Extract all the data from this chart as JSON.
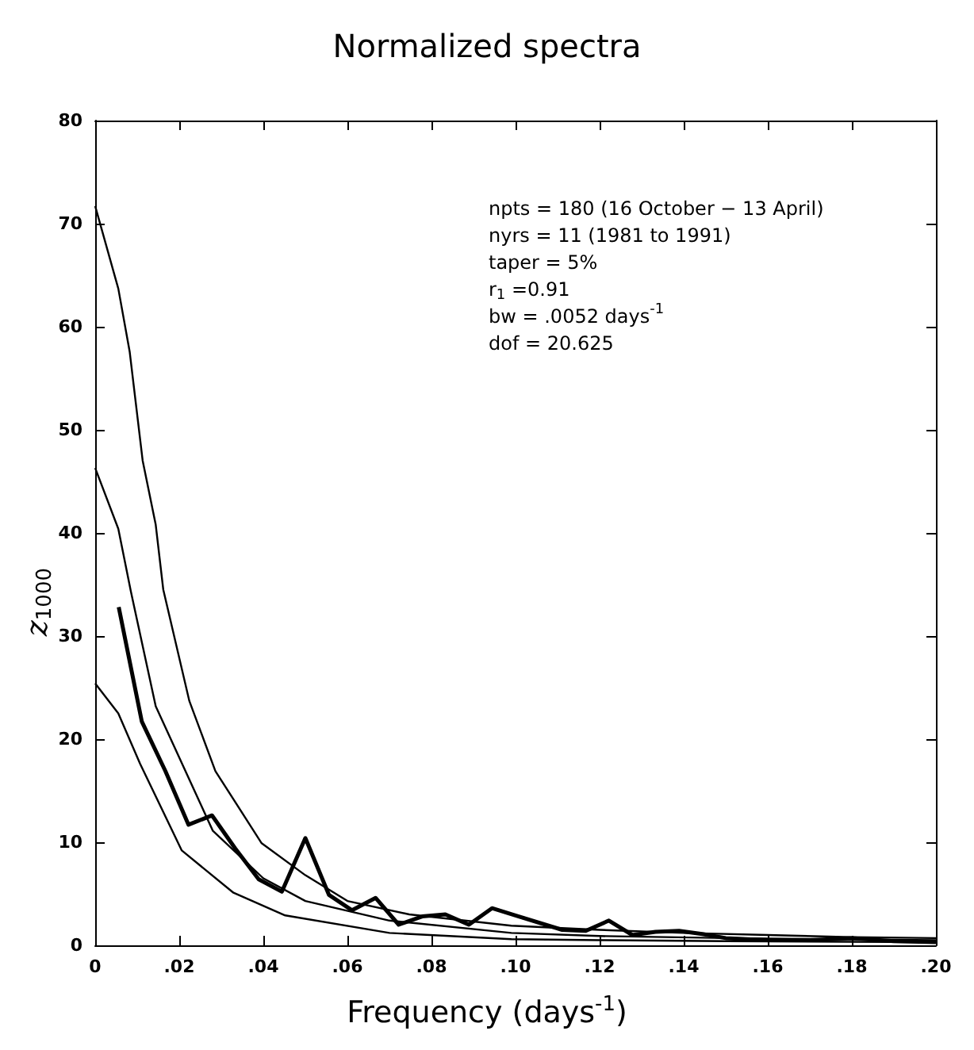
{
  "chart_data": {
    "type": "line",
    "title": "Normalized spectra",
    "xlabel": "Frequency (days$^{-1}$)",
    "ylabel": "z$_{1000}$",
    "annotations": [
      "npts = 180 (16 October − 13 April)",
      "nyrs = 11 (1981 to 1991)",
      "taper = 5%",
      "r$_{1}$ =0.91",
      "bw = .0052 days$^{-1}$",
      "dof = 20.625"
    ],
    "xlim": [
      0,
      0.2
    ],
    "xticks": [
      {
        "value": 0,
        "label": "0"
      },
      {
        "value": 0.02,
        "label": ".02"
      },
      {
        "value": 0.04,
        "label": ".04"
      },
      {
        "value": 0.06,
        "label": ".06"
      },
      {
        "value": 0.08,
        "label": ".08"
      },
      {
        "value": 0.1,
        "label": ".10"
      },
      {
        "value": 0.12,
        "label": ".12"
      },
      {
        "value": 0.14,
        "label": ".14"
      },
      {
        "value": 0.16,
        "label": ".16"
      },
      {
        "value": 0.18,
        "label": ".18"
      },
      {
        "value": 0.2,
        "label": ".20"
      }
    ],
    "ylim": [
      0,
      80
    ],
    "yticks": [
      0,
      10,
      20,
      30,
      40,
      50,
      60,
      70,
      80
    ],
    "grid": false,
    "marker": "none",
    "line_style": "solid",
    "series": [
      {
        "color": "#000000",
        "x": [
          0,
          0.0055,
          0.0082,
          0.0113,
          0.0144,
          0.0162,
          0.0224,
          0.0286,
          0.0396,
          0.05,
          0.06,
          0.0747,
          0.099,
          0.12,
          0.14,
          0.16,
          0.18,
          0.2
        ],
        "values": [
          71.7,
          63.7,
          57.6,
          47,
          40.8,
          34.5,
          23.7,
          16.9,
          9.9,
          6.8,
          4.3,
          3,
          1.9,
          1.5,
          1.2,
          1,
          0.8,
          0.7
        ]
      },
      {
        "color": "#000000",
        "x": [
          0,
          0.0055,
          0.0085,
          0.0144,
          0.028,
          0.04,
          0.05,
          0.07,
          0.099,
          0.12,
          0.15,
          0.2
        ],
        "values": [
          46.3,
          40.4,
          34.3,
          23.2,
          11.1,
          6.5,
          4.3,
          2.4,
          1.2,
          0.9,
          0.7,
          0.5
        ]
      },
      {
        "color": "#000000",
        "x": [
          0,
          0.0055,
          0.0107,
          0.0206,
          0.0329,
          0.0452,
          0.07,
          0.099,
          0.12,
          0.15,
          0.2
        ],
        "values": [
          25.4,
          22.5,
          17.6,
          9.2,
          5.1,
          2.9,
          1.2,
          0.6,
          0.5,
          0.4,
          0.3
        ]
      },
      {
        "color": "#000000",
        "x": [
          0.0056,
          0.0111,
          0.0167,
          0.0222,
          0.0278,
          0.0333,
          0.0389,
          0.0444,
          0.05,
          0.0556,
          0.0611,
          0.0667,
          0.0722,
          0.0778,
          0.0833,
          0.0889,
          0.0944,
          0.1,
          0.1111,
          0.1167,
          0.1222,
          0.1278,
          0.1333,
          0.1389,
          0.1444,
          0.15,
          0.16,
          0.17,
          0.18,
          0.19,
          0.2
        ],
        "values": [
          32.8,
          21.7,
          16.9,
          11.7,
          12.6,
          9.4,
          6.4,
          5.2,
          10.4,
          4.9,
          3.4,
          4.6,
          2,
          2.8,
          3,
          2,
          3.6,
          2.9,
          1.5,
          1.4,
          2.4,
          1,
          1.3,
          1.4,
          1.1,
          0.7,
          0.5,
          0.5,
          0.7,
          0.4,
          0.3
        ]
      }
    ]
  }
}
